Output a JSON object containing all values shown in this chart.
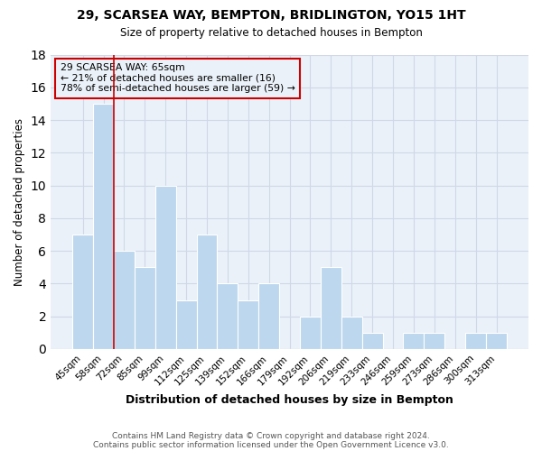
{
  "title1": "29, SCARSEA WAY, BEMPTON, BRIDLINGTON, YO15 1HT",
  "title2": "Size of property relative to detached houses in Bempton",
  "xlabel": "Distribution of detached houses by size in Bempton",
  "ylabel": "Number of detached properties",
  "bin_labels": [
    "45sqm",
    "58sqm",
    "72sqm",
    "85sqm",
    "99sqm",
    "112sqm",
    "125sqm",
    "139sqm",
    "152sqm",
    "166sqm",
    "179sqm",
    "192sqm",
    "206sqm",
    "219sqm",
    "233sqm",
    "246sqm",
    "259sqm",
    "273sqm",
    "286sqm",
    "300sqm",
    "313sqm"
  ],
  "bar_heights": [
    7,
    15,
    6,
    5,
    10,
    3,
    7,
    4,
    3,
    4,
    0,
    2,
    5,
    2,
    1,
    0,
    1,
    1,
    0,
    1,
    1
  ],
  "bar_color": "#bdd7ee",
  "bar_edge_color": "#ffffff",
  "grid_color": "#d0d8e8",
  "plot_bg_color": "#eaf1f8",
  "fig_bg_color": "#ffffff",
  "annotation_box_edge": "#cc0000",
  "annotation_line_color": "#cc0000",
  "annotation_text_line1": "29 SCARSEA WAY: 65sqm",
  "annotation_text_line2": "← 21% of detached houses are smaller (16)",
  "annotation_text_line3": "78% of semi-detached houses are larger (59) →",
  "property_line_x": 1.5,
  "ylim": [
    0,
    18
  ],
  "yticks": [
    0,
    2,
    4,
    6,
    8,
    10,
    12,
    14,
    16,
    18
  ],
  "footnote1": "Contains HM Land Registry data © Crown copyright and database right 2024.",
  "footnote2": "Contains public sector information licensed under the Open Government Licence v3.0."
}
